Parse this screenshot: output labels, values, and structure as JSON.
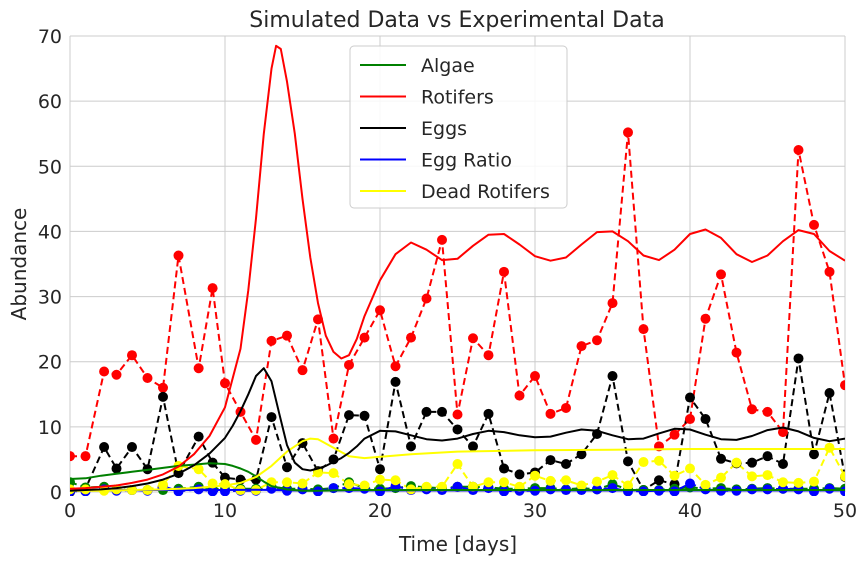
{
  "chart_data": {
    "type": "line",
    "title": "Simulated Data vs Experimental Data",
    "xlabel": "Time [days]",
    "ylabel": "Abundance",
    "xlim": [
      0,
      50
    ],
    "ylim": [
      0,
      70
    ],
    "xticks": [
      0,
      10,
      20,
      30,
      40,
      50
    ],
    "yticks": [
      0,
      10,
      20,
      30,
      40,
      50,
      60,
      70
    ],
    "grid": true,
    "legend_position": "top-center",
    "series": [
      {
        "name": "Algae",
        "color": "#008000",
        "kind": "simulated"
      },
      {
        "name": "Rotifers",
        "color": "#ff0000",
        "kind": "simulated"
      },
      {
        "name": "Eggs",
        "color": "#000000",
        "kind": "simulated"
      },
      {
        "name": "Egg Ratio",
        "color": "#0000ff",
        "kind": "simulated"
      },
      {
        "name": "Dead Rotifers",
        "color": "#ffff00",
        "kind": "simulated"
      }
    ],
    "simulated": {
      "Algae": {
        "x": [
          0,
          1,
          2,
          3,
          4,
          5,
          6,
          7,
          8,
          9,
          10,
          10.5,
          11,
          11.5,
          12,
          12.5,
          13,
          14,
          15,
          16,
          18,
          20,
          25,
          30,
          35,
          40,
          45,
          50
        ],
        "y": [
          2,
          2.1,
          2.5,
          2.8,
          3.1,
          3.4,
          3.7,
          4.0,
          4.2,
          4.4,
          4.3,
          4.0,
          3.6,
          3.1,
          2.4,
          1.6,
          0.9,
          0.4,
          0.2,
          0.2,
          0.3,
          0.3,
          0.3,
          0.3,
          0.3,
          0.3,
          0.3,
          0.3
        ]
      },
      "Rotifers": {
        "x": [
          0,
          1,
          2,
          3,
          4,
          5,
          6,
          7,
          8,
          9,
          10,
          11,
          11.5,
          12,
          12.5,
          13,
          13.3,
          13.6,
          14,
          14.5,
          15,
          15.5,
          16,
          16.5,
          17,
          17.5,
          18,
          18.5,
          19,
          20,
          21,
          22,
          23,
          24,
          25,
          26,
          27,
          28,
          29,
          30,
          31,
          32,
          33,
          34,
          35,
          36,
          37,
          38,
          39,
          40,
          41,
          42,
          43,
          44,
          45,
          46,
          47,
          48,
          49,
          50
        ],
        "y": [
          0.5,
          0.6,
          0.8,
          1.0,
          1.4,
          1.9,
          2.7,
          3.9,
          5.8,
          8.6,
          13,
          22,
          31,
          42,
          55,
          65,
          68.5,
          68,
          63,
          55,
          45,
          36,
          29,
          24,
          21.5,
          20.5,
          21,
          23.5,
          27,
          32.5,
          36.5,
          38.3,
          37.2,
          35.6,
          35.8,
          37.8,
          39.5,
          39.6,
          38,
          36.2,
          35.5,
          36,
          38,
          39.9,
          40,
          38.5,
          36.3,
          35.6,
          37.2,
          39.6,
          40.3,
          39,
          36.5,
          35.3,
          36.3,
          38.5,
          40.2,
          39.6,
          37,
          35.5
        ]
      },
      "Eggs": {
        "x": [
          0,
          1,
          2,
          3,
          4,
          5,
          6,
          7,
          8,
          9,
          10,
          10.5,
          11,
          11.5,
          12,
          12.5,
          13,
          13.5,
          14,
          14.5,
          15,
          15.5,
          16,
          16.5,
          17,
          17.5,
          18,
          18.5,
          19,
          20,
          21,
          22,
          23,
          24,
          25,
          26,
          27,
          28,
          29,
          30,
          31,
          32,
          33,
          34,
          35,
          36,
          37,
          38,
          39,
          40,
          41,
          42,
          43,
          44,
          45,
          46,
          47,
          48,
          49,
          50
        ],
        "y": [
          0.2,
          0.3,
          0.4,
          0.6,
          0.9,
          1.3,
          1.9,
          2.8,
          4.1,
          5.9,
          8.3,
          10.2,
          12.4,
          15,
          17.8,
          19,
          17,
          12,
          7.2,
          4.5,
          3.5,
          3.3,
          3.6,
          4.0,
          4.6,
          5.2,
          6.0,
          7.0,
          8.2,
          9.4,
          9.3,
          8.7,
          8.1,
          7.9,
          8.2,
          8.9,
          9.4,
          9.2,
          8.7,
          8.4,
          8.5,
          9.1,
          9.6,
          9.4,
          8.7,
          8.1,
          8.2,
          9.0,
          9.7,
          9.6,
          8.8,
          8.1,
          8.0,
          8.6,
          9.5,
          9.9,
          9.3,
          8.3,
          7.8,
          8.2
        ]
      },
      "Egg Ratio": {
        "x": [
          0,
          5,
          10,
          12,
          13,
          14,
          15,
          20,
          25,
          30,
          35,
          40,
          45,
          50
        ],
        "y": [
          0.3,
          0.3,
          0.3,
          0.35,
          0.3,
          0.25,
          0.25,
          0.25,
          0.25,
          0.25,
          0.25,
          0.25,
          0.25,
          0.25
        ]
      },
      "Dead Rotifers": {
        "x": [
          0,
          2,
          4,
          6,
          8,
          10,
          11,
          12,
          13,
          14,
          15,
          15.5,
          16,
          17,
          18,
          19,
          20,
          22,
          25,
          30,
          35,
          40,
          45,
          50
        ],
        "y": [
          0.2,
          0.2,
          0.3,
          0.4,
          0.6,
          1.0,
          1.4,
          2.3,
          4.0,
          6.2,
          7.8,
          8.2,
          8.1,
          6.8,
          5.5,
          5.2,
          5.4,
          5.8,
          6.2,
          6.4,
          6.5,
          6.6,
          6.6,
          6.6
        ]
      }
    },
    "experimental": {
      "x": [
        0,
        1,
        2.2,
        3,
        4,
        5,
        6,
        7,
        8.3,
        9.2,
        10,
        11,
        12,
        13,
        14,
        15,
        16,
        17,
        18,
        19,
        20,
        21,
        22,
        23,
        24,
        25,
        26,
        27,
        28,
        29,
        30,
        31,
        32,
        33,
        34,
        35,
        36,
        37,
        38,
        39,
        40,
        41,
        42,
        43,
        44,
        45,
        46,
        47,
        48,
        49,
        50
      ],
      "Rotifers": [
        5.5,
        5.5,
        18.5,
        18,
        21,
        17.5,
        16,
        36.3,
        19,
        31.3,
        16.7,
        12.3,
        8,
        23.2,
        24,
        18.7,
        26.5,
        8.2,
        19.5,
        23.7,
        27.9,
        19.3,
        23.7,
        29.7,
        38.7,
        11.9,
        23.6,
        21,
        33.8,
        14.8,
        17.8,
        12,
        12.9,
        22.4,
        23.3,
        29,
        55.2,
        25,
        7,
        8.8,
        11.2,
        26.6,
        33.4,
        21.4,
        12.7,
        12.3,
        9.2,
        52.5,
        41,
        33.8,
        16.4
      ],
      "Eggs": [
        0,
        0.5,
        6.9,
        3.6,
        6.9,
        3.5,
        14.6,
        2.9,
        8.5,
        4.5,
        2.2,
        1.9,
        1.9,
        11.5,
        3.8,
        7.5,
        3.2,
        5,
        11.8,
        11.7,
        3.5,
        16.9,
        7,
        12.3,
        12.3,
        9.6,
        7,
        12,
        3.6,
        2.7,
        3,
        4.9,
        4.3,
        5.8,
        8.9,
        17.8,
        4.7,
        0.3,
        1.8,
        1.2,
        14.5,
        11.2,
        5.1,
        4.4,
        4.5,
        5.5,
        4.3,
        20.5,
        5.8,
        15.2,
        2.3
      ],
      "Algae": [
        1.5,
        0.7,
        0.8,
        0.4,
        0.3,
        0.3,
        0.3,
        0.5,
        0.8,
        0.5,
        0.4,
        0.5,
        0.5,
        0.8,
        0.5,
        0.5,
        0.4,
        0.6,
        1.5,
        0.6,
        0.5,
        0.6,
        0.9,
        0.7,
        0.6,
        0.8,
        0.8,
        0.7,
        0.5,
        0.5,
        0.6,
        0.6,
        0.4,
        0.6,
        0.4,
        1.2,
        0.4,
        0.3,
        0.3,
        0.5,
        0.7,
        0.5,
        0.6,
        0.4,
        0.5,
        0.6,
        0.5,
        0.5,
        0.5,
        0.6,
        0.5
      ],
      "Egg Ratio": [
        0.1,
        0.1,
        0.4,
        0.2,
        0.3,
        0.2,
        0.9,
        0.1,
        0.4,
        0.1,
        0.1,
        0.2,
        0.2,
        0.5,
        0.2,
        0.4,
        0.1,
        0.6,
        0.6,
        0.5,
        0.1,
        0.9,
        0.3,
        0.4,
        0.3,
        0.8,
        0.3,
        0.6,
        0.1,
        0.2,
        0.2,
        0.4,
        0.3,
        0.3,
        0.4,
        0.6,
        0.1,
        0.1,
        0.2,
        0.1,
        1.3,
        0.4,
        0.2,
        0.2,
        0.4,
        0.4,
        0.5,
        0.4,
        0.1,
        0.5,
        0.1
      ],
      "Dead Rotifers": [
        0.4,
        0.4,
        0.2,
        0.4,
        0.3,
        0.3,
        1.1,
        4,
        3.5,
        1.3,
        1.2,
        0.3,
        0.3,
        1.5,
        1.5,
        1.3,
        3,
        2.9,
        1.2,
        1,
        1.9,
        1.8,
        0.4,
        0.8,
        0.8,
        4.3,
        0.8,
        1.5,
        1.5,
        0.8,
        2.5,
        1.7,
        1.8,
        1,
        1.6,
        2.6,
        1,
        4.6,
        4.8,
        2.5,
        3.6,
        1.1,
        2.2,
        4.5,
        2.4,
        2.6,
        1.5,
        1.4,
        1.6,
        6.8,
        2.4
      ]
    }
  }
}
